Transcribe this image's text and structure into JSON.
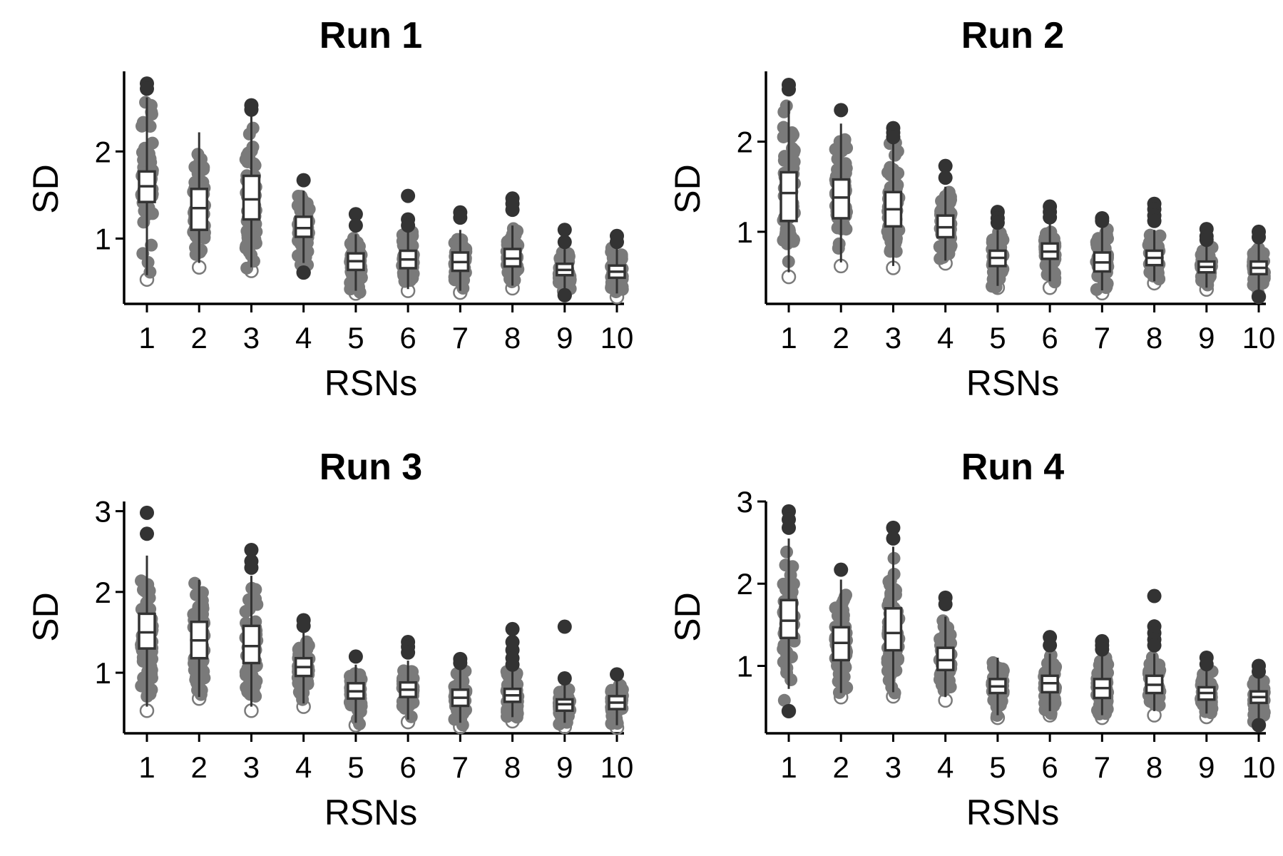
{
  "chart_data": [
    {
      "type": "box",
      "title": "Run 1",
      "xlabel": "RSNs",
      "ylabel": "SD",
      "categories": [
        "1",
        "2",
        "3",
        "4",
        "5",
        "6",
        "7",
        "8",
        "9",
        "10"
      ],
      "ylim": [
        0.25,
        2.92
      ],
      "yticks": [
        1,
        2
      ],
      "boxes": [
        {
          "q1": 1.42,
          "median": 1.6,
          "q3": 1.77,
          "whisker_low": 0.58,
          "whisker_high": 2.62,
          "min": 0.53,
          "max": 2.78,
          "outliers_high": [
            2.78,
            2.72
          ],
          "outliers_low": []
        },
        {
          "q1": 1.1,
          "median": 1.35,
          "q3": 1.57,
          "whisker_low": 0.72,
          "whisker_high": 2.22,
          "min": 0.67,
          "max": 2.25,
          "outliers_high": [],
          "outliers_low": []
        },
        {
          "q1": 1.22,
          "median": 1.45,
          "q3": 1.72,
          "whisker_low": 0.67,
          "whisker_high": 2.4,
          "min": 0.63,
          "max": 2.53,
          "outliers_high": [
            2.53,
            2.48
          ],
          "outliers_low": []
        },
        {
          "q1": 1.02,
          "median": 1.12,
          "q3": 1.25,
          "whisker_low": 0.72,
          "whisker_high": 1.55,
          "min": 0.61,
          "max": 1.67,
          "outliers_high": [
            1.67
          ],
          "outliers_low": [
            0.61
          ]
        },
        {
          "q1": 0.64,
          "median": 0.74,
          "q3": 0.83,
          "whisker_low": 0.4,
          "whisker_high": 1.05,
          "min": 0.37,
          "max": 1.28,
          "outliers_high": [
            1.28,
            1.15
          ],
          "outliers_low": []
        },
        {
          "q1": 0.66,
          "median": 0.76,
          "q3": 0.86,
          "whisker_low": 0.42,
          "whisker_high": 1.1,
          "min": 0.4,
          "max": 1.49,
          "outliers_high": [
            1.49,
            1.22,
            1.15
          ],
          "outliers_low": []
        },
        {
          "q1": 0.63,
          "median": 0.73,
          "q3": 0.84,
          "whisker_low": 0.4,
          "whisker_high": 1.1,
          "min": 0.38,
          "max": 1.3,
          "outliers_high": [
            1.3,
            1.24
          ],
          "outliers_low": []
        },
        {
          "q1": 0.68,
          "median": 0.77,
          "q3": 0.88,
          "whisker_low": 0.46,
          "whisker_high": 1.15,
          "min": 0.43,
          "max": 1.46,
          "outliers_high": [
            1.46,
            1.4,
            1.33
          ],
          "outliers_low": []
        },
        {
          "q1": 0.58,
          "median": 0.64,
          "q3": 0.71,
          "whisker_low": 0.4,
          "whisker_high": 0.88,
          "min": 0.35,
          "max": 1.1,
          "outliers_high": [
            1.1,
            0.96
          ],
          "outliers_low": [
            0.35
          ]
        },
        {
          "q1": 0.55,
          "median": 0.62,
          "q3": 0.69,
          "whisker_low": 0.37,
          "whisker_high": 0.9,
          "min": 0.33,
          "max": 1.03,
          "outliers_high": [
            1.03,
            0.96
          ],
          "outliers_low": []
        }
      ]
    },
    {
      "type": "box",
      "title": "Run 2",
      "xlabel": "RSNs",
      "ylabel": "SD",
      "categories": [
        "1",
        "2",
        "3",
        "4",
        "5",
        "6",
        "7",
        "8",
        "9",
        "10"
      ],
      "ylim": [
        0.2,
        2.78
      ],
      "yticks": [
        1,
        2
      ],
      "boxes": [
        {
          "q1": 1.12,
          "median": 1.43,
          "q3": 1.66,
          "whisker_low": 0.55,
          "whisker_high": 2.45,
          "min": 0.5,
          "max": 2.63,
          "outliers_high": [
            2.63,
            2.58
          ],
          "outliers_low": []
        },
        {
          "q1": 1.15,
          "median": 1.38,
          "q3": 1.58,
          "whisker_low": 0.66,
          "whisker_high": 2.2,
          "min": 0.62,
          "max": 2.35,
          "outliers_high": [
            2.35
          ],
          "outliers_low": []
        },
        {
          "q1": 1.06,
          "median": 1.25,
          "q3": 1.44,
          "whisker_low": 0.62,
          "whisker_high": 2.0,
          "min": 0.6,
          "max": 2.15,
          "outliers_high": [
            2.15,
            2.1,
            2.05
          ],
          "outliers_low": []
        },
        {
          "q1": 0.94,
          "median": 1.05,
          "q3": 1.18,
          "whisker_low": 0.68,
          "whisker_high": 1.5,
          "min": 0.65,
          "max": 1.73,
          "outliers_high": [
            1.73,
            1.6
          ],
          "outliers_low": []
        },
        {
          "q1": 0.62,
          "median": 0.71,
          "q3": 0.79,
          "whisker_low": 0.4,
          "whisker_high": 1.02,
          "min": 0.38,
          "max": 1.22,
          "outliers_high": [
            1.22,
            1.15,
            1.1
          ],
          "outliers_low": []
        },
        {
          "q1": 0.7,
          "median": 0.78,
          "q3": 0.87,
          "whisker_low": 0.45,
          "whisker_high": 1.1,
          "min": 0.38,
          "max": 1.28,
          "outliers_high": [
            1.28,
            1.22,
            1.16
          ],
          "outliers_low": []
        },
        {
          "q1": 0.56,
          "median": 0.66,
          "q3": 0.77,
          "whisker_low": 0.35,
          "whisker_high": 1.05,
          "min": 0.32,
          "max": 1.15,
          "outliers_high": [
            1.15,
            1.12
          ],
          "outliers_low": []
        },
        {
          "q1": 0.63,
          "median": 0.71,
          "q3": 0.79,
          "whisker_low": 0.45,
          "whisker_high": 1.02,
          "min": 0.43,
          "max": 1.31,
          "outliers_high": [
            1.31,
            1.25,
            1.18,
            1.12
          ],
          "outliers_low": []
        },
        {
          "q1": 0.55,
          "median": 0.61,
          "q3": 0.67,
          "whisker_low": 0.38,
          "whisker_high": 0.85,
          "min": 0.36,
          "max": 1.03,
          "outliers_high": [
            1.03,
            0.95,
            0.91
          ],
          "outliers_low": []
        },
        {
          "q1": 0.53,
          "median": 0.6,
          "q3": 0.67,
          "whisker_low": 0.35,
          "whisker_high": 0.88,
          "min": 0.28,
          "max": 1.0,
          "outliers_high": [
            1.0,
            0.94
          ],
          "outliers_low": [
            0.28
          ]
        }
      ]
    },
    {
      "type": "box",
      "title": "Run 3",
      "xlabel": "RSNs",
      "ylabel": "SD",
      "categories": [
        "1",
        "2",
        "3",
        "4",
        "5",
        "6",
        "7",
        "8",
        "9",
        "10"
      ],
      "ylim": [
        0.25,
        3.12
      ],
      "yticks": [
        1,
        2,
        3
      ],
      "boxes": [
        {
          "q1": 1.3,
          "median": 1.5,
          "q3": 1.73,
          "whisker_low": 0.58,
          "whisker_high": 2.45,
          "min": 0.53,
          "max": 2.98,
          "outliers_high": [
            2.98,
            2.72
          ],
          "outliers_low": []
        },
        {
          "q1": 1.18,
          "median": 1.4,
          "q3": 1.63,
          "whisker_low": 0.7,
          "whisker_high": 2.15,
          "min": 0.68,
          "max": 2.21,
          "outliers_high": [],
          "outliers_low": []
        },
        {
          "q1": 1.12,
          "median": 1.33,
          "q3": 1.58,
          "whisker_low": 0.58,
          "whisker_high": 2.2,
          "min": 0.53,
          "max": 2.52,
          "outliers_high": [
            2.52,
            2.38,
            2.3
          ],
          "outliers_low": []
        },
        {
          "q1": 0.96,
          "median": 1.07,
          "q3": 1.18,
          "whisker_low": 0.62,
          "whisker_high": 1.5,
          "min": 0.58,
          "max": 1.65,
          "outliers_high": [
            1.65,
            1.58
          ],
          "outliers_low": []
        },
        {
          "q1": 0.68,
          "median": 0.77,
          "q3": 0.87,
          "whisker_low": 0.38,
          "whisker_high": 1.1,
          "min": 0.35,
          "max": 1.2,
          "outliers_high": [
            1.2
          ],
          "outliers_low": []
        },
        {
          "q1": 0.7,
          "median": 0.79,
          "q3": 0.88,
          "whisker_low": 0.42,
          "whisker_high": 1.15,
          "min": 0.39,
          "max": 1.38,
          "outliers_high": [
            1.38,
            1.32,
            1.25
          ],
          "outliers_low": []
        },
        {
          "q1": 0.59,
          "median": 0.69,
          "q3": 0.79,
          "whisker_low": 0.38,
          "whisker_high": 1.05,
          "min": 0.33,
          "max": 1.17,
          "outliers_high": [
            1.17,
            1.12
          ],
          "outliers_low": []
        },
        {
          "q1": 0.64,
          "median": 0.72,
          "q3": 0.8,
          "whisker_low": 0.45,
          "whisker_high": 1.05,
          "min": 0.4,
          "max": 1.54,
          "outliers_high": [
            1.54,
            1.38,
            1.28,
            1.18,
            1.1
          ],
          "outliers_low": []
        },
        {
          "q1": 0.53,
          "median": 0.61,
          "q3": 0.67,
          "whisker_low": 0.38,
          "whisker_high": 0.85,
          "min": 0.33,
          "max": 1.57,
          "outliers_high": [
            1.57,
            0.93
          ],
          "outliers_low": []
        },
        {
          "q1": 0.55,
          "median": 0.63,
          "q3": 0.71,
          "whisker_low": 0.35,
          "whisker_high": 0.9,
          "min": 0.32,
          "max": 0.98,
          "outliers_high": [
            0.98
          ],
          "outliers_low": []
        }
      ]
    },
    {
      "type": "box",
      "title": "Run 4",
      "xlabel": "RSNs",
      "ylabel": "SD",
      "categories": [
        "1",
        "2",
        "3",
        "4",
        "5",
        "6",
        "7",
        "8",
        "9",
        "10"
      ],
      "ylim": [
        0.18,
        3.0
      ],
      "yticks": [
        1,
        2,
        3
      ],
      "boxes": [
        {
          "q1": 1.34,
          "median": 1.55,
          "q3": 1.8,
          "whisker_low": 0.72,
          "whisker_high": 2.55,
          "min": 0.45,
          "max": 2.88,
          "outliers_high": [
            2.88,
            2.78,
            2.68
          ],
          "outliers_low": [
            0.45
          ]
        },
        {
          "q1": 1.07,
          "median": 1.28,
          "q3": 1.47,
          "whisker_low": 0.67,
          "whisker_high": 2.05,
          "min": 0.62,
          "max": 2.17,
          "outliers_high": [
            2.17
          ],
          "outliers_low": []
        },
        {
          "q1": 1.19,
          "median": 1.4,
          "q3": 1.7,
          "whisker_low": 0.68,
          "whisker_high": 2.45,
          "min": 0.63,
          "max": 2.68,
          "outliers_high": [
            2.68,
            2.55
          ],
          "outliers_low": []
        },
        {
          "q1": 0.95,
          "median": 1.07,
          "q3": 1.22,
          "whisker_low": 0.62,
          "whisker_high": 1.6,
          "min": 0.58,
          "max": 1.83,
          "outliers_high": [
            1.83,
            1.75
          ],
          "outliers_low": []
        },
        {
          "q1": 0.67,
          "median": 0.75,
          "q3": 0.84,
          "whisker_low": 0.4,
          "whisker_high": 1.1,
          "min": 0.37,
          "max": 1.12,
          "outliers_high": [],
          "outliers_low": []
        },
        {
          "q1": 0.68,
          "median": 0.79,
          "q3": 0.88,
          "whisker_low": 0.45,
          "whisker_high": 1.15,
          "min": 0.4,
          "max": 1.35,
          "outliers_high": [
            1.35,
            1.25
          ],
          "outliers_low": []
        },
        {
          "q1": 0.61,
          "median": 0.73,
          "q3": 0.84,
          "whisker_low": 0.4,
          "whisker_high": 1.15,
          "min": 0.37,
          "max": 1.3,
          "outliers_high": [
            1.3,
            1.25,
            1.2
          ],
          "outliers_low": []
        },
        {
          "q1": 0.67,
          "median": 0.77,
          "q3": 0.88,
          "whisker_low": 0.45,
          "whisker_high": 1.15,
          "min": 0.4,
          "max": 1.85,
          "outliers_high": [
            1.85,
            1.48,
            1.4,
            1.32,
            1.25
          ],
          "outliers_low": []
        },
        {
          "q1": 0.59,
          "median": 0.67,
          "q3": 0.74,
          "whisker_low": 0.42,
          "whisker_high": 0.95,
          "min": 0.38,
          "max": 1.1,
          "outliers_high": [
            1.1,
            1.02
          ],
          "outliers_low": []
        },
        {
          "q1": 0.55,
          "median": 0.62,
          "q3": 0.69,
          "whisker_low": 0.36,
          "whisker_high": 0.88,
          "min": 0.28,
          "max": 1.0,
          "outliers_high": [
            1.0,
            0.93
          ],
          "outliers_low": [
            0.28
          ]
        }
      ]
    }
  ],
  "style": {
    "point_color": "#7a7a7a",
    "outlier_color": "#333333",
    "box_fill": "#ffffff",
    "box_stroke": "#333333",
    "axis_color": "#000000"
  }
}
